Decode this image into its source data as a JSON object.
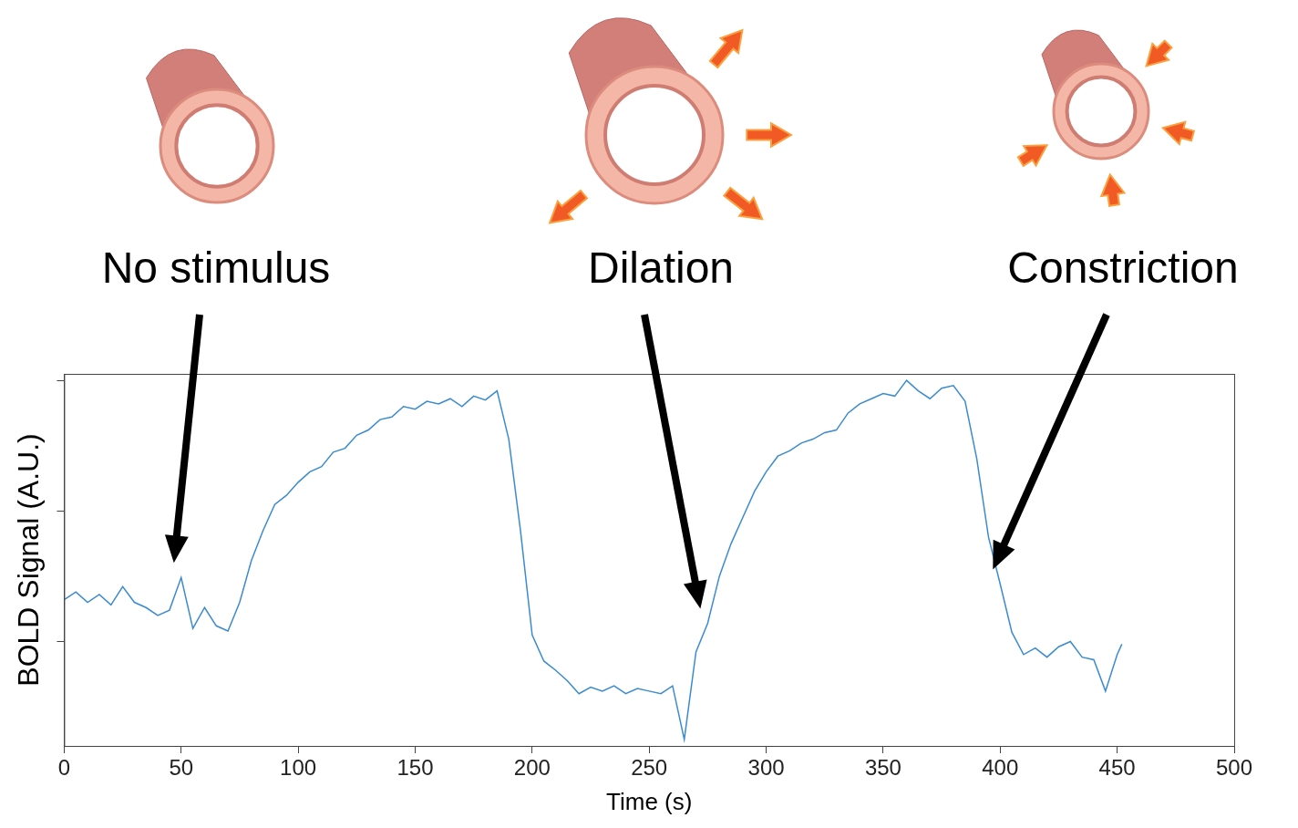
{
  "chart_data": {
    "type": "line",
    "x_label": "Time (s)",
    "y_label": "BOLD Signal (A.U.)",
    "x": [
      0,
      5,
      10,
      15,
      20,
      25,
      30,
      35,
      40,
      45,
      50,
      55,
      60,
      65,
      70,
      75,
      80,
      85,
      90,
      95,
      100,
      105,
      110,
      115,
      120,
      125,
      130,
      135,
      140,
      145,
      150,
      155,
      160,
      165,
      170,
      175,
      180,
      185,
      190,
      195,
      200,
      205,
      210,
      215,
      220,
      225,
      230,
      235,
      240,
      245,
      250,
      255,
      260,
      265,
      270,
      275,
      280,
      285,
      290,
      295,
      300,
      305,
      310,
      315,
      320,
      325,
      330,
      335,
      340,
      345,
      350,
      355,
      360,
      365,
      370,
      375,
      380,
      385,
      390,
      395,
      400,
      405,
      410,
      415,
      420,
      425,
      430,
      435,
      440,
      445,
      450,
      452
    ],
    "values": [
      1.32,
      1.38,
      1.3,
      1.36,
      1.28,
      1.42,
      1.3,
      1.26,
      1.2,
      1.24,
      1.49,
      1.1,
      1.26,
      1.12,
      1.08,
      1.3,
      1.62,
      1.85,
      2.05,
      2.12,
      2.22,
      2.3,
      2.34,
      2.45,
      2.48,
      2.58,
      2.62,
      2.7,
      2.72,
      2.8,
      2.78,
      2.84,
      2.82,
      2.86,
      2.8,
      2.88,
      2.85,
      2.92,
      2.55,
      1.85,
      1.05,
      0.85,
      0.78,
      0.7,
      0.6,
      0.65,
      0.62,
      0.66,
      0.6,
      0.64,
      0.62,
      0.6,
      0.66,
      0.25,
      0.92,
      1.14,
      1.5,
      1.75,
      1.95,
      2.15,
      2.3,
      2.42,
      2.46,
      2.52,
      2.55,
      2.6,
      2.62,
      2.75,
      2.82,
      2.86,
      2.9,
      2.88,
      3.0,
      2.92,
      2.86,
      2.94,
      2.96,
      2.84,
      2.4,
      1.8,
      1.44,
      1.07,
      0.9,
      0.95,
      0.88,
      0.96,
      1.0,
      0.88,
      0.86,
      0.62,
      0.9,
      0.98
    ],
    "color": "#3b8bd0",
    "xlim": [
      0,
      500
    ],
    "xticks": [
      0,
      50,
      100,
      150,
      200,
      250,
      300,
      350,
      400,
      450,
      500
    ],
    "ylim": [
      0.2,
      3.05
    ],
    "yticks": [
      1,
      2,
      3
    ],
    "grid": false,
    "tick_labels": "x",
    "annotations": [
      {
        "text": "No stimulus",
        "x": 50
      },
      {
        "text": "Dilation",
        "x": 275
      },
      {
        "text": "Constriction",
        "x": 400
      }
    ]
  }
}
